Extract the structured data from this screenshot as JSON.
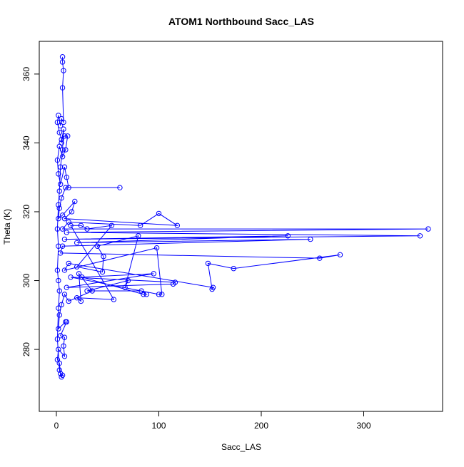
{
  "chart_data": {
    "type": "line",
    "markers": true,
    "color": "#0000ff",
    "title": "ATOM1 Northbound Sacc_LAS",
    "xlabel": "Sacc_LAS",
    "ylabel": "Theta (K)",
    "xlim": [
      -16.7,
      377
    ],
    "ylim": [
      262,
      369.5
    ],
    "xticks": [
      0,
      100,
      200,
      300
    ],
    "yticks": [
      280,
      300,
      320,
      340,
      360
    ],
    "x": [
      6,
      6,
      7,
      6,
      7,
      5,
      4,
      2,
      1,
      3,
      5,
      8,
      11,
      9,
      6,
      3,
      1,
      2,
      4,
      8,
      10,
      12,
      62,
      9,
      5,
      3,
      2,
      6,
      18,
      15,
      8,
      118,
      100,
      82,
      12,
      6,
      363,
      10,
      355,
      8,
      226,
      20,
      248,
      6,
      4,
      257,
      277,
      173,
      148,
      152,
      153,
      12,
      8,
      98,
      103,
      100,
      14,
      116,
      114,
      10,
      95,
      25,
      85,
      88,
      83,
      30,
      70,
      67,
      80,
      40,
      46,
      45,
      20,
      54,
      30,
      24,
      14,
      56,
      20,
      24,
      22,
      35,
      12,
      8,
      5,
      3,
      2,
      9,
      10,
      4,
      8,
      7,
      8,
      2,
      1,
      3,
      4,
      6,
      5,
      3,
      1,
      2,
      3,
      2,
      1,
      2,
      1,
      2,
      3,
      4,
      6,
      7,
      5
    ],
    "values": [
      365,
      363.5,
      361,
      356,
      346,
      347,
      345,
      348,
      346,
      343,
      341,
      342,
      342,
      338,
      336,
      339,
      335,
      331,
      328,
      333,
      330,
      327,
      327,
      327,
      324,
      321,
      318,
      319,
      323,
      320,
      318,
      316,
      319.5,
      316,
      317,
      315,
      315,
      314,
      313,
      312,
      313,
      311,
      312,
      310,
      308,
      306.5,
      307.5,
      303.5,
      305,
      297.5,
      298,
      305,
      303,
      309.5,
      296,
      296,
      301,
      299.5,
      299,
      298,
      302,
      301,
      296,
      296,
      297,
      297,
      300,
      298,
      313,
      310,
      307,
      302.5,
      304,
      316,
      315,
      316,
      316,
      294.5,
      295,
      294,
      302,
      297,
      294,
      296,
      293,
      290,
      286,
      288,
      288,
      284,
      283.5,
      281,
      278,
      280,
      277,
      276,
      273,
      272.5,
      272,
      274,
      283,
      292,
      297,
      300,
      303,
      310,
      315,
      322,
      326,
      333,
      338,
      344,
      340
    ]
  }
}
